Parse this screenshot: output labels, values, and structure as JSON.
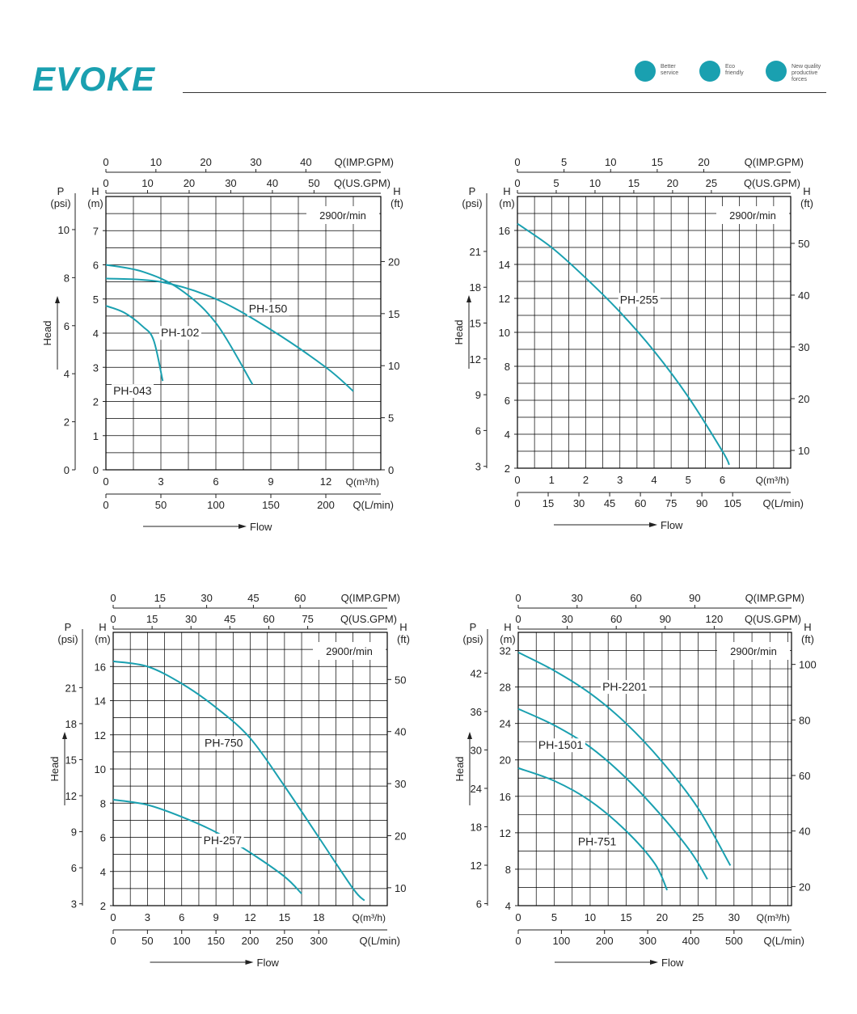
{
  "header": {
    "brand": "EVOKE",
    "badges": [
      {
        "icon": "service-person-icon",
        "line1": "Better",
        "line2": "service",
        "line3": ""
      },
      {
        "icon": "eco-leaf-icon",
        "line1": "Eco",
        "line2": "friendly",
        "line3": ""
      },
      {
        "icon": "gear-icon",
        "line1": "New quality",
        "line2": "productive",
        "line3": "forces"
      }
    ]
  },
  "colors": {
    "curve": "#1aa0b0",
    "brand": "#1aa0b0",
    "axis": "#222222"
  },
  "chart_data": [
    {
      "type": "line",
      "speed_label": "2900r/min",
      "left_outer_label": [
        "P",
        "(psi)"
      ],
      "left_inner_label": [
        "H",
        "(m)"
      ],
      "right_label": [
        "H",
        "(ft)"
      ],
      "side_label": "Head",
      "flow_label": "Flow",
      "xlim": [
        0,
        15
      ],
      "ylim": [
        0,
        8
      ],
      "x_ticks": [
        0,
        3,
        6,
        9,
        12
      ],
      "x_unit_label": "Q(m³/h)",
      "lmin_ticks": [
        0,
        50,
        100,
        150,
        200
      ],
      "lmin_unit": "Q(L/min)",
      "usgpm_ticks": [
        0,
        10,
        20,
        30,
        40,
        50
      ],
      "usgpm_unit": "Q(US.GPM)",
      "impgpm_ticks": [
        0,
        10,
        20,
        30,
        40
      ],
      "impgpm_unit": "Q(IMP.GPM)",
      "h_ticks": [
        0,
        1,
        2,
        3,
        4,
        5,
        6,
        7
      ],
      "p_ticks": [
        0,
        2,
        4,
        6,
        8,
        10
      ],
      "ft_ticks": [
        0,
        5,
        10,
        15,
        20
      ],
      "series": [
        {
          "name": "PH-043",
          "points": [
            [
              0,
              4.8
            ],
            [
              1,
              4.6
            ],
            [
              2,
              4.2
            ],
            [
              2.6,
              3.8
            ],
            [
              3.1,
              2.6
            ]
          ],
          "label_at": [
            0.4,
            2.2
          ]
        },
        {
          "name": "PH-102",
          "points": [
            [
              0,
              6.0
            ],
            [
              2,
              5.8
            ],
            [
              4,
              5.3
            ],
            [
              6,
              4.3
            ],
            [
              8,
              2.5
            ]
          ],
          "label_at": [
            3.0,
            3.9
          ]
        },
        {
          "name": "PH-150",
          "points": [
            [
              0,
              5.6
            ],
            [
              3,
              5.5
            ],
            [
              6,
              5.0
            ],
            [
              9,
              4.1
            ],
            [
              12,
              3.0
            ],
            [
              13.5,
              2.3
            ]
          ],
          "label_at": [
            7.8,
            4.6
          ]
        }
      ]
    },
    {
      "type": "line",
      "speed_label": "2900r/min",
      "left_outer_label": [
        "P",
        "(psi)"
      ],
      "left_inner_label": [
        "H",
        "(m)"
      ],
      "right_label": [
        "H",
        "(ft)"
      ],
      "side_label": "Head",
      "flow_label": "Flow",
      "xlim": [
        0,
        8
      ],
      "ylim": [
        2,
        18
      ],
      "x_ticks": [
        0,
        1,
        2,
        3,
        4,
        5,
        6
      ],
      "x_unit_label": "Q(m³/h)",
      "lmin_ticks": [
        0,
        15,
        30,
        45,
        60,
        75,
        90,
        105
      ],
      "lmin_unit": "Q(L/min)",
      "usgpm_ticks": [
        0,
        5,
        10,
        15,
        20,
        25
      ],
      "usgpm_unit": "Q(US.GPM)",
      "impgpm_ticks": [
        0,
        5,
        10,
        15,
        20
      ],
      "impgpm_unit": "Q(IMP.GPM)",
      "h_ticks": [
        2,
        4,
        6,
        8,
        10,
        12,
        14,
        16
      ],
      "p_ticks": [
        3,
        6,
        9,
        12,
        15,
        18,
        21
      ],
      "ft_ticks": [
        10,
        20,
        30,
        40,
        50
      ],
      "series": [
        {
          "name": "PH-255",
          "points": [
            [
              0,
              16.4
            ],
            [
              1,
              15.0
            ],
            [
              2,
              13.2
            ],
            [
              3,
              11.2
            ],
            [
              4,
              8.9
            ],
            [
              5,
              6.2
            ],
            [
              6,
              3.0
            ],
            [
              6.2,
              2.2
            ]
          ],
          "label_at": [
            3.0,
            11.7
          ]
        }
      ]
    },
    {
      "type": "line",
      "speed_label": "2900r/min",
      "left_outer_label": [
        "P",
        "(psi)"
      ],
      "left_inner_label": [
        "H",
        "(m)"
      ],
      "right_label": [
        "H",
        "(ft)"
      ],
      "side_label": "Head",
      "flow_label": "Flow",
      "xlim": [
        0,
        24
      ],
      "ylim": [
        2,
        18
      ],
      "x_ticks": [
        0,
        3,
        6,
        9,
        12,
        15,
        18
      ],
      "x_unit_label": "Q(m³/h)",
      "lmin_ticks": [
        0,
        50,
        100,
        150,
        200,
        250,
        300
      ],
      "lmin_unit": "Q(L/min)",
      "usgpm_ticks": [
        0,
        15,
        30,
        45,
        60,
        75
      ],
      "usgpm_unit": "Q(US.GPM)",
      "impgpm_ticks": [
        0,
        15,
        30,
        45,
        60
      ],
      "impgpm_unit": "Q(IMP.GPM)",
      "h_ticks": [
        2,
        4,
        6,
        8,
        10,
        12,
        14,
        16
      ],
      "p_ticks": [
        3,
        6,
        9,
        12,
        15,
        18,
        21
      ],
      "ft_ticks": [
        10,
        20,
        30,
        40,
        50
      ],
      "series": [
        {
          "name": "PH-750",
          "points": [
            [
              0,
              16.3
            ],
            [
              3,
              16.0
            ],
            [
              6,
              15.0
            ],
            [
              9,
              13.6
            ],
            [
              12,
              11.8
            ],
            [
              15,
              9.0
            ],
            [
              18,
              6.0
            ],
            [
              21,
              3.0
            ],
            [
              22,
              2.3
            ]
          ],
          "label_at": [
            8.0,
            11.3
          ]
        },
        {
          "name": "PH-257",
          "points": [
            [
              0,
              8.2
            ],
            [
              3,
              7.9
            ],
            [
              6,
              7.2
            ],
            [
              9,
              6.3
            ],
            [
              12,
              5.1
            ],
            [
              15,
              3.7
            ],
            [
              16.5,
              2.7
            ]
          ],
          "label_at": [
            7.9,
            5.6
          ]
        }
      ]
    },
    {
      "type": "line",
      "speed_label": "2900r/min",
      "left_outer_label": [
        "P",
        "(psi)"
      ],
      "left_inner_label": [
        "H",
        "(m)"
      ],
      "right_label": [
        "H",
        "(ft)"
      ],
      "side_label": "Head",
      "flow_label": "Flow",
      "xlim": [
        0,
        38
      ],
      "ylim": [
        4,
        34
      ],
      "x_ticks": [
        0,
        5,
        10,
        15,
        20,
        25,
        30
      ],
      "x_unit_label": "Q(m³/h)",
      "lmin_ticks": [
        0,
        100,
        200,
        300,
        400,
        500
      ],
      "lmin_unit": "Q(L/min)",
      "usgpm_ticks": [
        0,
        30,
        60,
        90,
        120
      ],
      "usgpm_unit": "Q(US.GPM)",
      "impgpm_ticks": [
        0,
        30,
        60,
        90
      ],
      "impgpm_unit": "Q(IMP.GPM)",
      "h_ticks": [
        4,
        8,
        12,
        16,
        20,
        24,
        28,
        32
      ],
      "p_ticks": [
        6,
        12,
        18,
        24,
        30,
        36,
        42
      ],
      "ft_ticks": [
        20,
        40,
        60,
        80,
        100
      ],
      "series": [
        {
          "name": "PH-2201",
          "points": [
            [
              0,
              31.8
            ],
            [
              5,
              29.8
            ],
            [
              10,
              27.3
            ],
            [
              15,
              24.0
            ],
            [
              20,
              19.8
            ],
            [
              25,
              14.7
            ],
            [
              29.5,
              8.4
            ]
          ],
          "label_at": [
            11.7,
            27.6
          ]
        },
        {
          "name": "PH-1501",
          "points": [
            [
              0,
              25.6
            ],
            [
              5,
              23.8
            ],
            [
              10,
              21.4
            ],
            [
              15,
              18.0
            ],
            [
              20,
              13.8
            ],
            [
              24,
              9.9
            ],
            [
              26.3,
              6.9
            ]
          ],
          "label_at": [
            2.8,
            21.2
          ]
        },
        {
          "name": "PH-751",
          "points": [
            [
              0,
              19.1
            ],
            [
              5,
              17.7
            ],
            [
              10,
              15.5
            ],
            [
              15,
              12.2
            ],
            [
              19,
              8.6
            ],
            [
              20.7,
              5.7
            ]
          ],
          "label_at": [
            8.3,
            10.6
          ]
        }
      ]
    }
  ]
}
